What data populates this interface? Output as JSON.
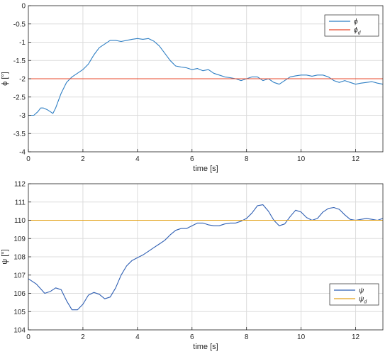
{
  "chart_data": [
    {
      "type": "line",
      "xlabel": "time [s]",
      "ylabel": "ϕ [°]",
      "xlim": [
        0,
        13
      ],
      "ylim": [
        -4,
        0
      ],
      "xticks": [
        0,
        2,
        4,
        6,
        8,
        10,
        12
      ],
      "yticks": [
        -4,
        -3.5,
        -3,
        -2.5,
        -2,
        -1.5,
        -1,
        -0.5,
        0
      ],
      "xtick_labels": [
        "0",
        "2",
        "4",
        "6",
        "8",
        "10",
        "12"
      ],
      "ytick_labels": [
        "-4",
        "-3.5",
        "-3",
        "-2.5",
        "-2",
        "-1.5",
        "-1",
        "-0.5",
        "0"
      ],
      "grid": true,
      "legend_position": "top-right",
      "series": [
        {
          "name": "ϕ",
          "sub": "",
          "color": "#2f7fc4",
          "x": [
            0,
            0.2,
            0.35,
            0.45,
            0.55,
            0.7,
            0.8,
            0.9,
            1.0,
            1.2,
            1.4,
            1.6,
            1.8,
            2.0,
            2.2,
            2.4,
            2.6,
            2.8,
            3.0,
            3.2,
            3.4,
            3.6,
            3.8,
            4.0,
            4.2,
            4.4,
            4.6,
            4.8,
            5.0,
            5.2,
            5.4,
            5.6,
            5.8,
            6.0,
            6.2,
            6.4,
            6.6,
            6.8,
            7.0,
            7.2,
            7.4,
            7.6,
            7.8,
            8.0,
            8.2,
            8.4,
            8.6,
            8.8,
            9.0,
            9.2,
            9.4,
            9.6,
            9.8,
            10.0,
            10.2,
            10.4,
            10.6,
            10.8,
            11.0,
            11.2,
            11.4,
            11.6,
            11.8,
            12.0,
            12.2,
            12.4,
            12.6,
            12.8,
            13.0
          ],
          "y": [
            -3.0,
            -3.0,
            -2.9,
            -2.8,
            -2.8,
            -2.85,
            -2.9,
            -2.95,
            -2.8,
            -2.4,
            -2.1,
            -1.95,
            -1.85,
            -1.75,
            -1.6,
            -1.35,
            -1.15,
            -1.05,
            -0.95,
            -0.95,
            -0.98,
            -0.95,
            -0.92,
            -0.9,
            -0.92,
            -0.9,
            -0.97,
            -1.1,
            -1.3,
            -1.5,
            -1.65,
            -1.68,
            -1.7,
            -1.75,
            -1.72,
            -1.78,
            -1.75,
            -1.85,
            -1.9,
            -1.95,
            -1.97,
            -2.0,
            -2.05,
            -2.0,
            -1.95,
            -1.95,
            -2.05,
            -2.0,
            -2.1,
            -2.15,
            -2.05,
            -1.95,
            -1.92,
            -1.9,
            -1.9,
            -1.93,
            -1.9,
            -1.9,
            -1.95,
            -2.05,
            -2.1,
            -2.05,
            -2.1,
            -2.15,
            -2.12,
            -2.1,
            -2.08,
            -2.12,
            -2.15
          ]
        },
        {
          "name": "ϕ",
          "sub": "d",
          "color": "#e8482b",
          "x": [
            0,
            13
          ],
          "y": [
            -2,
            -2
          ]
        }
      ]
    },
    {
      "type": "line",
      "xlabel": "time [s]",
      "ylabel": "ψ [°]",
      "xlim": [
        0,
        13
      ],
      "ylim": [
        104,
        112
      ],
      "xticks": [
        0,
        2,
        4,
        6,
        8,
        10,
        12
      ],
      "yticks": [
        104,
        105,
        106,
        107,
        108,
        109,
        110,
        111,
        112
      ],
      "xtick_labels": [
        "0",
        "2",
        "4",
        "6",
        "8",
        "10",
        "12"
      ],
      "ytick_labels": [
        "104",
        "105",
        "106",
        "107",
        "108",
        "109",
        "110",
        "111",
        "112"
      ],
      "grid": true,
      "legend_position": "bottom-right",
      "series": [
        {
          "name": "ψ",
          "sub": "",
          "color": "#2f5fb3",
          "x": [
            0,
            0.3,
            0.6,
            0.8,
            1.0,
            1.2,
            1.4,
            1.6,
            1.8,
            2.0,
            2.2,
            2.4,
            2.6,
            2.8,
            3.0,
            3.2,
            3.4,
            3.6,
            3.8,
            4.0,
            4.2,
            4.4,
            4.6,
            4.8,
            5.0,
            5.2,
            5.4,
            5.6,
            5.8,
            6.0,
            6.2,
            6.4,
            6.6,
            6.8,
            7.0,
            7.2,
            7.4,
            7.6,
            7.8,
            8.0,
            8.2,
            8.4,
            8.6,
            8.8,
            9.0,
            9.2,
            9.4,
            9.6,
            9.8,
            10.0,
            10.2,
            10.4,
            10.6,
            10.8,
            11.0,
            11.2,
            11.4,
            11.6,
            11.8,
            12.0,
            12.2,
            12.4,
            12.6,
            12.8,
            13.0
          ],
          "y": [
            106.8,
            106.5,
            106.0,
            106.1,
            106.3,
            106.2,
            105.6,
            105.1,
            105.1,
            105.4,
            105.9,
            106.05,
            105.95,
            105.7,
            105.8,
            106.3,
            107.0,
            107.5,
            107.8,
            107.95,
            108.1,
            108.3,
            108.5,
            108.7,
            108.9,
            109.2,
            109.45,
            109.55,
            109.55,
            109.7,
            109.85,
            109.85,
            109.75,
            109.7,
            109.7,
            109.8,
            109.85,
            109.85,
            109.95,
            110.1,
            110.4,
            110.8,
            110.85,
            110.5,
            110.0,
            109.7,
            109.8,
            110.2,
            110.55,
            110.45,
            110.15,
            110.0,
            110.1,
            110.45,
            110.65,
            110.7,
            110.6,
            110.3,
            110.05,
            110.0,
            110.05,
            110.1,
            110.05,
            110.0,
            110.1
          ],
          "x_override": null
        },
        {
          "name": "ψ",
          "sub": "d",
          "color": "#e3a21a",
          "x": [
            0,
            13
          ],
          "y": [
            110,
            110
          ]
        }
      ]
    }
  ]
}
